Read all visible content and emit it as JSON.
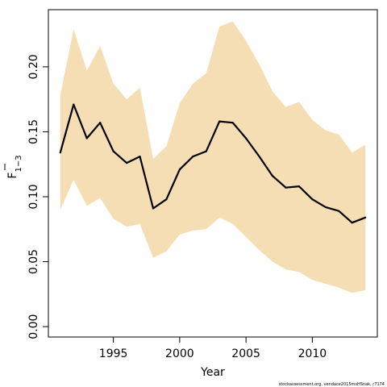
{
  "chart_data": {
    "type": "line",
    "title": "",
    "xlabel": "Year",
    "ylabel_main": "F",
    "ylabel_sub": "1−3",
    "xlim": [
      1990.1,
      2014.9
    ],
    "ylim": [
      -0.008,
      0.244
    ],
    "x_ticks": [
      1995,
      2000,
      2005,
      2010
    ],
    "y_ticks": [
      0.0,
      0.05,
      0.1,
      0.15,
      0.2
    ],
    "y_tick_labels": [
      "0.00",
      "0.05",
      "0.10",
      "0.15",
      "0.20"
    ],
    "grid": false,
    "band_color": "#f5deb3",
    "line_color": "#000000",
    "series": [
      {
        "x": [
          1991,
          1992,
          1993,
          1994,
          1995,
          1996,
          1997,
          1998,
          1999,
          2000,
          2001,
          2002,
          2003,
          2004,
          2005,
          2006,
          2007,
          2008,
          2009,
          2010,
          2011,
          2012,
          2013,
          2014
        ],
        "values": [
          0.134,
          0.171,
          0.145,
          0.157,
          0.135,
          0.126,
          0.131,
          0.091,
          0.098,
          0.121,
          0.131,
          0.135,
          0.158,
          0.157,
          0.145,
          0.131,
          0.116,
          0.107,
          0.108,
          0.098,
          0.092,
          0.089,
          0.08,
          0.084
        ],
        "upper": [
          0.178,
          0.229,
          0.197,
          0.216,
          0.187,
          0.175,
          0.184,
          0.129,
          0.139,
          0.172,
          0.187,
          0.195,
          0.231,
          0.235,
          0.22,
          0.202,
          0.181,
          0.169,
          0.173,
          0.159,
          0.151,
          0.148,
          0.134,
          0.14
        ],
        "lower": [
          0.09,
          0.113,
          0.093,
          0.099,
          0.083,
          0.077,
          0.079,
          0.053,
          0.058,
          0.071,
          0.074,
          0.075,
          0.084,
          0.079,
          0.069,
          0.059,
          0.05,
          0.044,
          0.042,
          0.036,
          0.033,
          0.03,
          0.026,
          0.028
        ]
      }
    ]
  },
  "footnote": "stockassessment.org, vendace2015msHSnak, r7174"
}
